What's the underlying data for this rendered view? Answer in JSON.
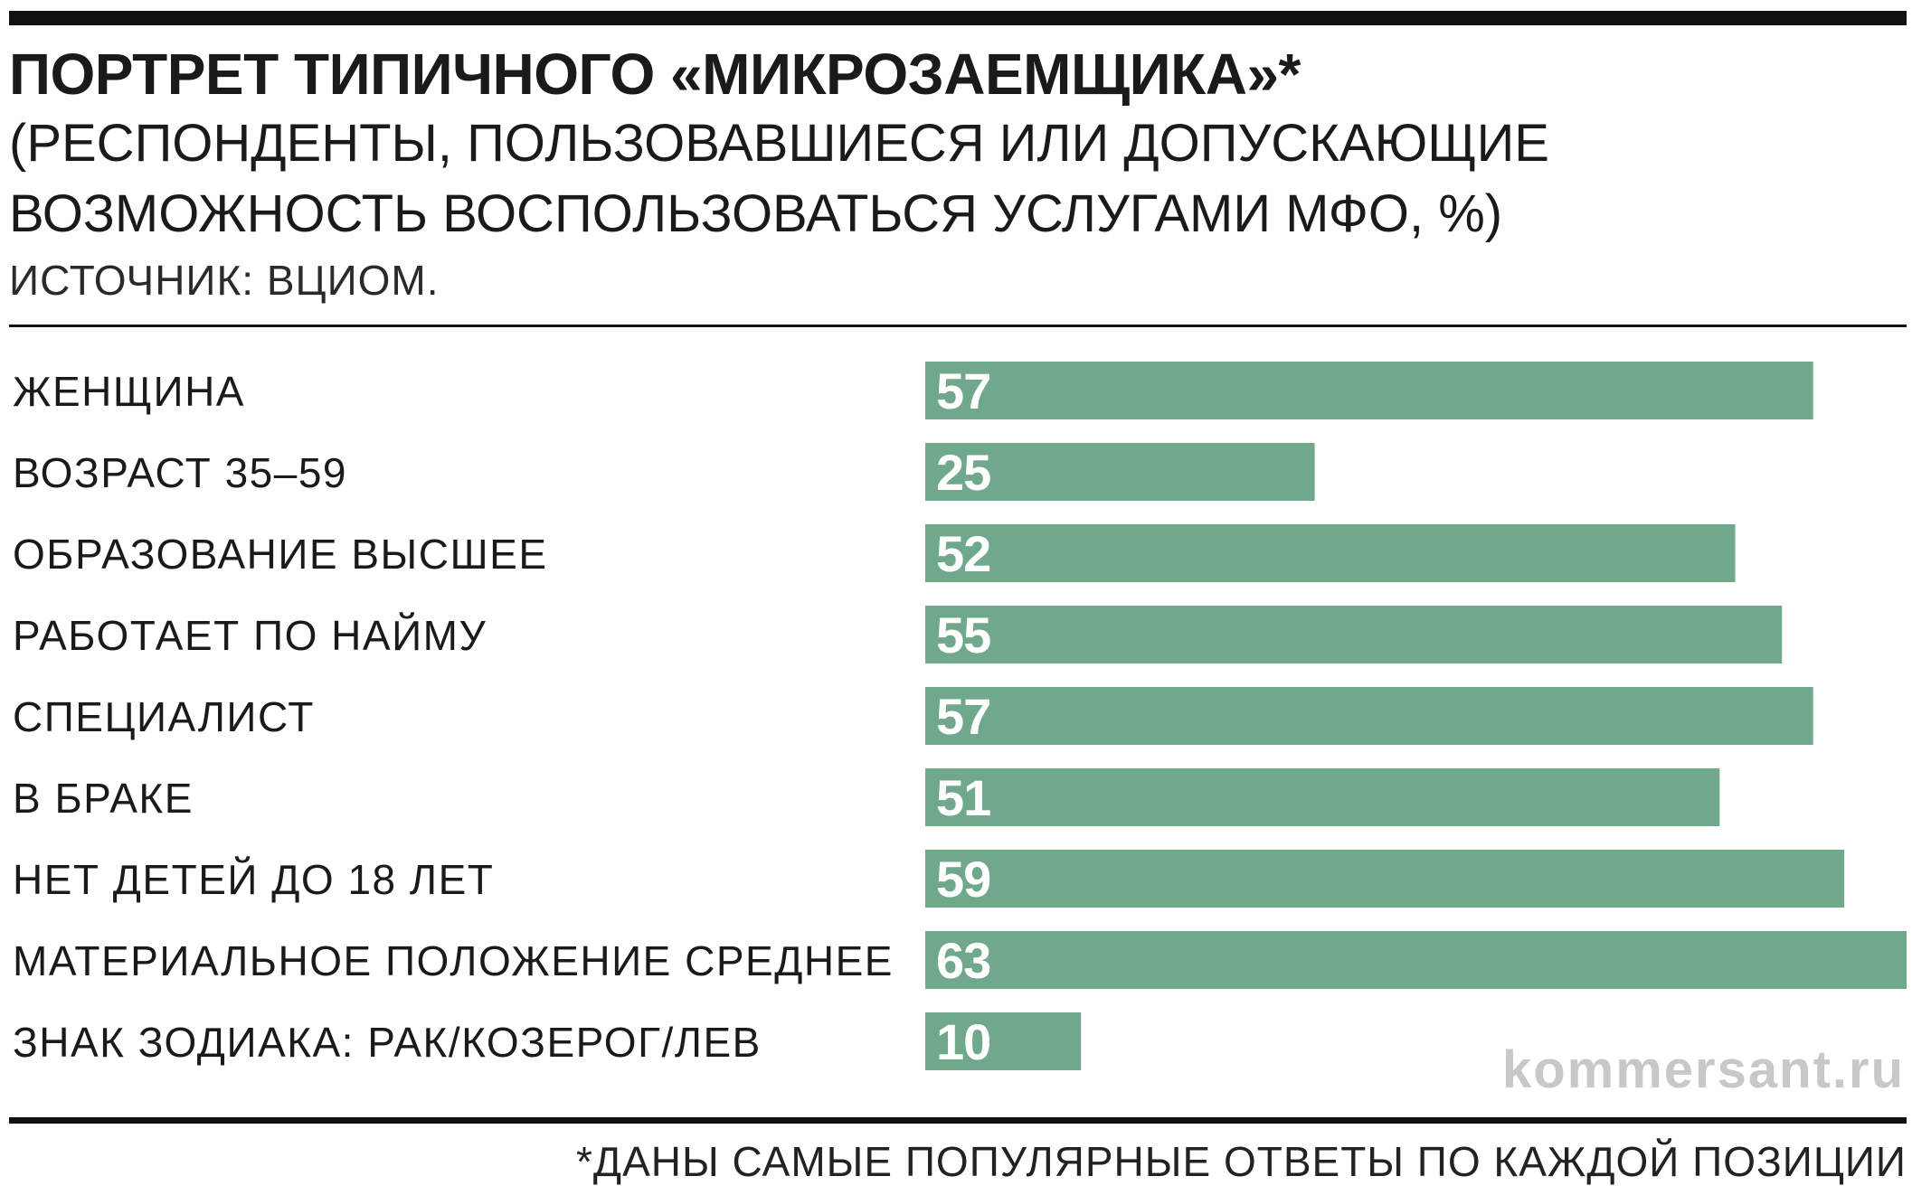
{
  "title": "ПОРТРЕТ ТИПИЧНОГО «МИКРОЗАЕМЩИКА»*",
  "subtitle": "(РЕСПОНДЕНТЫ, ПОЛЬЗОВАВШИЕСЯ ИЛИ ДОПУСКАЮЩИЕ ВОЗМОЖНОСТЬ ВОСПОЛЬЗОВАТЬСЯ УСЛУГАМИ МФО, %)",
  "source": "ИСТОЧНИК: ВЦИОМ.",
  "watermark": "kommersant.ru",
  "footnote": "*ДАНЫ САМЫЕ ПОПУЛЯРНЫЕ ОТВЕТЫ ПО КАЖДОЙ ПОЗИЦИИ",
  "colors": {
    "bar": "#6fa88a",
    "bar_label": "#ffffff",
    "text": "#1a1a1a"
  },
  "chart_data": {
    "type": "bar",
    "orientation": "horizontal",
    "title": "ПОРТРЕТ ТИПИЧНОГО «МИКРОЗАЕМЩИКА»*",
    "categories": [
      "ЖЕНЩИНА",
      "ВОЗРАСТ 35–59",
      "ОБРАЗОВАНИЕ ВЫСШЕЕ",
      "РАБОТАЕТ ПО НАЙМУ",
      "СПЕЦИАЛИСТ",
      "В БРАКЕ",
      "НЕТ ДЕТЕЙ ДО 18 ЛЕТ",
      "МАТЕРИАЛЬНОЕ ПОЛОЖЕНИЕ СРЕДНЕЕ",
      "ЗНАК ЗОДИАКА: РАК/КОЗЕРОГ/ЛЕВ"
    ],
    "values": [
      57,
      25,
      52,
      55,
      57,
      51,
      59,
      63,
      10
    ],
    "xlim": [
      0,
      63
    ],
    "grid": false,
    "data_labels": true
  }
}
